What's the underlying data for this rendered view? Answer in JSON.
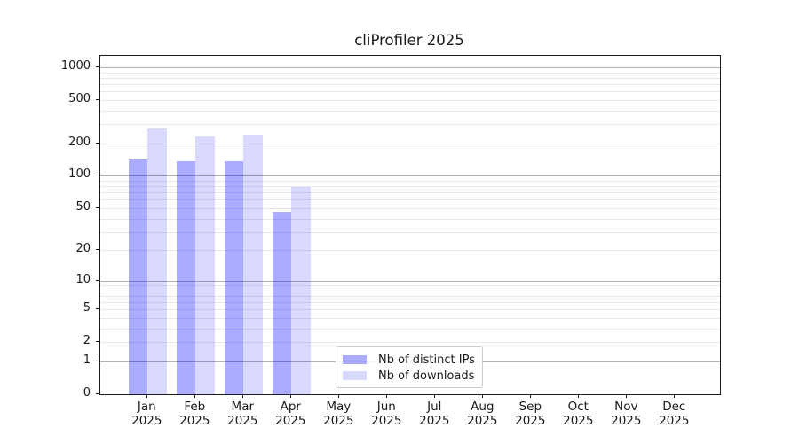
{
  "chart_data": {
    "type": "bar",
    "title": "cliProfiler 2025",
    "categories": [
      "Jan 2025",
      "Feb 2025",
      "Mar 2025",
      "Apr 2025",
      "May 2025",
      "Jun 2025",
      "Jul 2025",
      "Aug 2025",
      "Sep 2025",
      "Oct 2025",
      "Nov 2025",
      "Dec 2025"
    ],
    "series": [
      {
        "name": "Nb of distinct IPs",
        "color": "rgba(0,0,255,0.33)",
        "values": [
          142,
          137,
          137,
          46,
          0,
          0,
          0,
          0,
          0,
          0,
          0,
          0
        ]
      },
      {
        "name": "Nb of downloads",
        "color": "rgba(0,0,255,0.15)",
        "values": [
          275,
          230,
          240,
          79,
          0,
          0,
          0,
          0,
          0,
          0,
          0,
          0
        ]
      }
    ],
    "yscale": "log(1+y)",
    "yticks": [
      0,
      1,
      2,
      5,
      10,
      20,
      50,
      100,
      200,
      500,
      1000
    ],
    "ylim": [
      0,
      1300
    ],
    "xlabel": "",
    "ylabel": "",
    "grid": "major-and-minor-horizontal",
    "legend_position": "lower center"
  },
  "colors": {
    "bar_distinct_ips_on_white": "#ababfa",
    "bar_downloads_on_white": "#d9d9fb",
    "grid_major": "#b2b2b2",
    "grid_minor": "#e8e8e8",
    "spine": "#1a1a1a",
    "text": "#1a1a1a",
    "legend_border": "#cccccc"
  }
}
